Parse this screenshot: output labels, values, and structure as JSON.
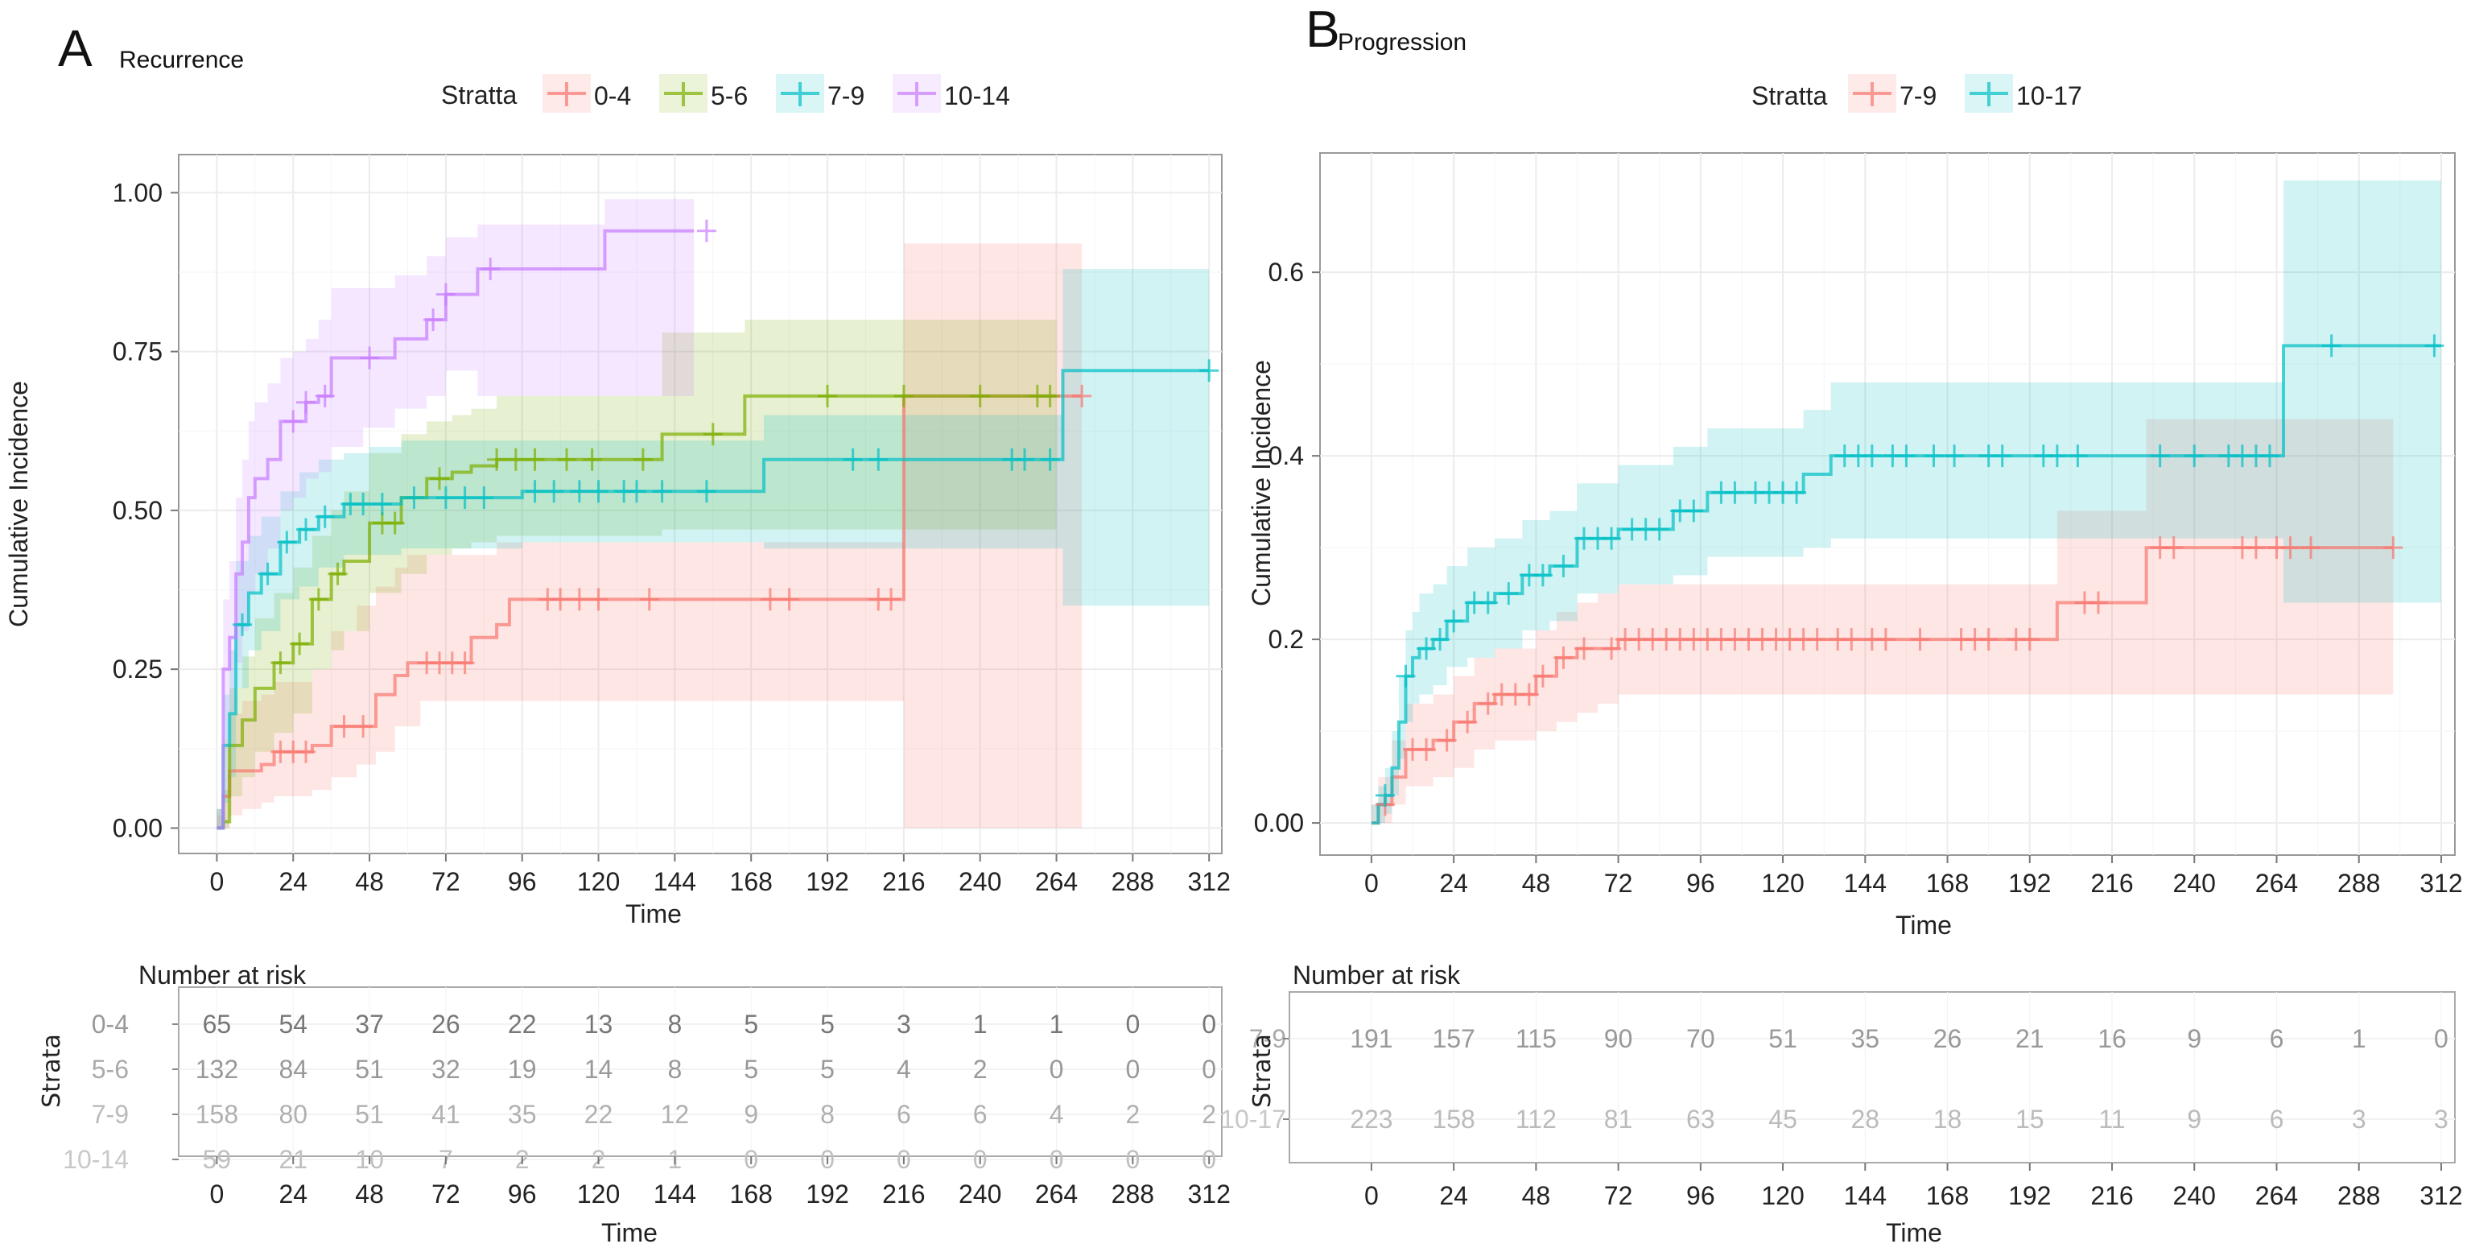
{
  "figure": {
    "panels": [
      {
        "letter": "A",
        "title": "Recurrence",
        "legend_title": "Stratta",
        "ylabel": "Cumulative Incidence",
        "xlabel": "Time",
        "risk_table": {
          "title": "Number at risk",
          "ylabel": "Strata",
          "xlabel": "Time"
        }
      },
      {
        "letter": "B",
        "title": "Progression",
        "legend_title": "Stratta",
        "ylabel": "Cumulative Incidence",
        "xlabel": "Time",
        "risk_table": {
          "title": "Number at risk",
          "ylabel": "Strata",
          "xlabel": "Time"
        }
      }
    ]
  },
  "chart_data": [
    {
      "type": "line",
      "subtype": "step (cumulative incidence with confidence bands and censor marks)",
      "title": "Recurrence",
      "panel": "A",
      "xlabel": "Time",
      "ylabel": "Cumulative Incidence",
      "xlim": [
        -12,
        316
      ],
      "ylim": [
        -0.04,
        1.06
      ],
      "xticks": [
        0,
        24,
        48,
        72,
        96,
        120,
        144,
        168,
        192,
        216,
        240,
        264,
        288,
        312
      ],
      "yticks": [
        0.0,
        0.25,
        0.5,
        0.75,
        1.0
      ],
      "ytick_labels": [
        "0.00",
        "0.25",
        "0.50",
        "0.75",
        "1.00"
      ],
      "grid": true,
      "legend": {
        "title": "Stratta",
        "position": "top-center"
      },
      "series": [
        {
          "name": "0-4",
          "color": "#F8766D",
          "x": [
            0,
            2,
            4,
            8,
            14,
            18,
            30,
            36,
            44,
            50,
            56,
            60,
            64,
            80,
            88,
            92,
            98,
            216,
            272
          ],
          "y": [
            0,
            0.05,
            0.09,
            0.09,
            0.1,
            0.12,
            0.13,
            0.16,
            0.16,
            0.21,
            0.24,
            0.26,
            0.26,
            0.3,
            0.32,
            0.36,
            0.36,
            0.68,
            0.68
          ],
          "lower": [
            0,
            0,
            0.02,
            0.03,
            0.04,
            0.05,
            0.06,
            0.08,
            0.1,
            0.12,
            0.16,
            0.16,
            0.2,
            0.2,
            0.2,
            0.2,
            0.2,
            0.0,
            0.0
          ],
          "upper": [
            0.02,
            0.14,
            0.18,
            0.2,
            0.21,
            0.23,
            0.25,
            0.31,
            0.35,
            0.38,
            0.41,
            0.43,
            0.43,
            0.43,
            0.45,
            0.45,
            0.45,
            0.92,
            0.92
          ],
          "censor_x": [
            20,
            24,
            28,
            40,
            46,
            66,
            70,
            74,
            78,
            104,
            108,
            114,
            120,
            136,
            174,
            180,
            208,
            212,
            272
          ]
        },
        {
          "name": "5-6",
          "color": "#7CAE00",
          "x": [
            0,
            2,
            4,
            8,
            12,
            18,
            24,
            30,
            36,
            40,
            48,
            58,
            66,
            74,
            80,
            88,
            140,
            166,
            264
          ],
          "y": [
            0,
            0.01,
            0.13,
            0.17,
            0.22,
            0.26,
            0.29,
            0.36,
            0.4,
            0.42,
            0.48,
            0.52,
            0.55,
            0.56,
            0.57,
            0.58,
            0.62,
            0.68,
            0.68
          ],
          "lower": [
            0,
            0,
            0.05,
            0.08,
            0.12,
            0.15,
            0.18,
            0.25,
            0.28,
            0.31,
            0.37,
            0.4,
            0.43,
            0.44,
            0.45,
            0.46,
            0.47,
            0.47,
            0.47
          ],
          "upper": [
            0.03,
            0.06,
            0.22,
            0.27,
            0.33,
            0.37,
            0.41,
            0.46,
            0.5,
            0.53,
            0.59,
            0.62,
            0.64,
            0.65,
            0.66,
            0.68,
            0.78,
            0.8,
            0.8
          ],
          "censor_x": [
            20,
            26,
            32,
            38,
            52,
            56,
            70,
            88,
            94,
            100,
            110,
            118,
            134,
            156,
            192,
            216,
            240,
            258,
            262
          ]
        },
        {
          "name": "7-9",
          "color": "#00BFC4",
          "x": [
            0,
            2,
            4,
            6,
            10,
            14,
            20,
            26,
            32,
            40,
            48,
            58,
            96,
            172,
            266,
            312
          ],
          "y": [
            0,
            0.13,
            0.18,
            0.32,
            0.37,
            0.4,
            0.45,
            0.47,
            0.49,
            0.51,
            0.51,
            0.52,
            0.53,
            0.58,
            0.72,
            0.72
          ],
          "lower": [
            0,
            0.04,
            0.08,
            0.22,
            0.28,
            0.31,
            0.36,
            0.38,
            0.41,
            0.43,
            0.43,
            0.44,
            0.45,
            0.44,
            0.35,
            0.35
          ],
          "upper": [
            0.03,
            0.21,
            0.28,
            0.42,
            0.46,
            0.49,
            0.53,
            0.56,
            0.58,
            0.59,
            0.6,
            0.61,
            0.61,
            0.65,
            0.88,
            0.88
          ],
          "censor_x": [
            8,
            16,
            22,
            28,
            34,
            42,
            46,
            52,
            62,
            72,
            78,
            84,
            100,
            106,
            114,
            120,
            128,
            132,
            140,
            154,
            200,
            208,
            250,
            254,
            262,
            312
          ]
        },
        {
          "name": "10-14",
          "color": "#C77CFF",
          "x": [
            0,
            2,
            4,
            6,
            8,
            10,
            12,
            16,
            20,
            24,
            28,
            32,
            36,
            46,
            56,
            66,
            72,
            82,
            106,
            122,
            150
          ],
          "y": [
            0,
            0.25,
            0.3,
            0.4,
            0.45,
            0.52,
            0.55,
            0.58,
            0.64,
            0.64,
            0.67,
            0.68,
            0.74,
            0.74,
            0.77,
            0.8,
            0.84,
            0.88,
            0.88,
            0.94,
            0.94
          ],
          "lower": [
            0,
            0.14,
            0.18,
            0.26,
            0.31,
            0.37,
            0.4,
            0.44,
            0.5,
            0.52,
            0.55,
            0.56,
            0.6,
            0.63,
            0.66,
            0.68,
            0.72,
            0.68,
            0.68,
            0.68,
            0.68
          ],
          "upper": [
            0.03,
            0.36,
            0.42,
            0.52,
            0.58,
            0.64,
            0.67,
            0.7,
            0.74,
            0.75,
            0.77,
            0.8,
            0.85,
            0.85,
            0.87,
            0.9,
            0.93,
            0.95,
            0.95,
            0.99,
            0.99
          ],
          "censor_x": [
            24,
            28,
            34,
            48,
            68,
            72,
            86,
            154
          ]
        }
      ],
      "risk_table": {
        "title": "Number at risk",
        "ylabel": "Strata",
        "xlabel": "Time",
        "times": [
          0,
          24,
          48,
          72,
          96,
          120,
          144,
          168,
          192,
          216,
          240,
          264,
          288,
          312
        ],
        "rows": [
          {
            "stratum": "0-4",
            "values": [
              65,
              54,
              37,
              26,
              22,
              13,
              8,
              5,
              5,
              3,
              1,
              1,
              0,
              0
            ]
          },
          {
            "stratum": "5-6",
            "values": [
              132,
              84,
              51,
              32,
              19,
              14,
              8,
              5,
              5,
              4,
              2,
              0,
              0,
              0
            ]
          },
          {
            "stratum": "7-9",
            "values": [
              158,
              80,
              51,
              41,
              35,
              22,
              12,
              9,
              8,
              6,
              6,
              4,
              2,
              2
            ]
          },
          {
            "stratum": "10-14",
            "values": [
              59,
              21,
              10,
              7,
              2,
              2,
              1,
              0,
              0,
              0,
              0,
              0,
              0,
              0
            ]
          }
        ]
      }
    },
    {
      "type": "line",
      "subtype": "step (cumulative incidence with confidence bands and censor marks)",
      "title": "Progression",
      "panel": "B",
      "xlabel": "Time",
      "ylabel": "Cumulative Incidence",
      "xlim": [
        -15,
        316
      ],
      "ylim": [
        -0.035,
        0.73
      ],
      "xticks": [
        0,
        24,
        48,
        72,
        96,
        120,
        144,
        168,
        192,
        216,
        240,
        264,
        288,
        312
      ],
      "yticks": [
        0.0,
        0.2,
        0.4,
        0.6
      ],
      "ytick_labels": [
        "0.00",
        "0.2",
        "0.4",
        "0.6"
      ],
      "grid": true,
      "legend": {
        "title": "Stratta",
        "position": "top-center"
      },
      "series": [
        {
          "name": "7-9",
          "color": "#F8766D",
          "x": [
            0,
            2,
            6,
            10,
            18,
            24,
            30,
            36,
            48,
            54,
            60,
            66,
            72,
            200,
            226,
            298
          ],
          "y": [
            0,
            0.02,
            0.05,
            0.08,
            0.09,
            0.11,
            0.13,
            0.14,
            0.16,
            0.18,
            0.19,
            0.19,
            0.2,
            0.24,
            0.3,
            0.3
          ],
          "lower": [
            0,
            0,
            0.02,
            0.04,
            0.05,
            0.06,
            0.08,
            0.09,
            0.1,
            0.11,
            0.12,
            0.13,
            0.14,
            0.14,
            0.14,
            0.14
          ],
          "upper": [
            0.02,
            0.05,
            0.09,
            0.13,
            0.14,
            0.16,
            0.18,
            0.19,
            0.21,
            0.23,
            0.24,
            0.25,
            0.26,
            0.34,
            0.44,
            0.44
          ],
          "censor_x": [
            4,
            12,
            16,
            22,
            28,
            34,
            38,
            42,
            46,
            50,
            56,
            62,
            70,
            74,
            78,
            82,
            86,
            90,
            94,
            98,
            102,
            106,
            110,
            114,
            118,
            122,
            126,
            130,
            136,
            140,
            146,
            150,
            160,
            172,
            176,
            180,
            188,
            192,
            208,
            212,
            230,
            234,
            254,
            258,
            264,
            268,
            274,
            298
          ]
        },
        {
          "name": "10-17",
          "color": "#00BFC4",
          "x": [
            0,
            2,
            4,
            6,
            8,
            10,
            12,
            14,
            18,
            22,
            28,
            36,
            44,
            52,
            60,
            72,
            88,
            98,
            126,
            134,
            266,
            312
          ],
          "y": [
            0,
            0.02,
            0.03,
            0.06,
            0.11,
            0.16,
            0.18,
            0.19,
            0.2,
            0.22,
            0.24,
            0.25,
            0.27,
            0.28,
            0.31,
            0.32,
            0.34,
            0.36,
            0.38,
            0.4,
            0.52,
            0.52
          ],
          "lower": [
            0,
            0,
            0.01,
            0.03,
            0.07,
            0.11,
            0.13,
            0.14,
            0.15,
            0.17,
            0.18,
            0.19,
            0.21,
            0.22,
            0.25,
            0.26,
            0.27,
            0.29,
            0.3,
            0.31,
            0.24,
            0.24
          ],
          "upper": [
            0.02,
            0.04,
            0.06,
            0.1,
            0.16,
            0.21,
            0.23,
            0.25,
            0.26,
            0.28,
            0.3,
            0.31,
            0.33,
            0.34,
            0.37,
            0.39,
            0.41,
            0.43,
            0.45,
            0.48,
            0.7,
            0.7
          ],
          "censor_x": [
            4,
            10,
            16,
            20,
            24,
            30,
            34,
            40,
            46,
            50,
            56,
            62,
            66,
            70,
            76,
            80,
            84,
            90,
            94,
            102,
            106,
            112,
            116,
            120,
            124,
            138,
            142,
            146,
            152,
            156,
            164,
            170,
            180,
            184,
            196,
            200,
            206,
            230,
            240,
            250,
            254,
            258,
            262,
            280,
            310
          ]
        }
      ],
      "risk_table": {
        "title": "Number at risk",
        "ylabel": "Strata",
        "xlabel": "Time",
        "times": [
          0,
          24,
          48,
          72,
          96,
          120,
          144,
          168,
          192,
          216,
          240,
          264,
          288,
          312
        ],
        "rows": [
          {
            "stratum": "7-9",
            "values": [
              191,
              157,
              115,
              90,
              70,
              51,
              35,
              26,
              21,
              16,
              9,
              6,
              1,
              0
            ]
          },
          {
            "stratum": "10-17",
            "values": [
              223,
              158,
              112,
              81,
              63,
              45,
              28,
              18,
              15,
              11,
              9,
              6,
              3,
              3
            ]
          }
        ]
      }
    }
  ]
}
